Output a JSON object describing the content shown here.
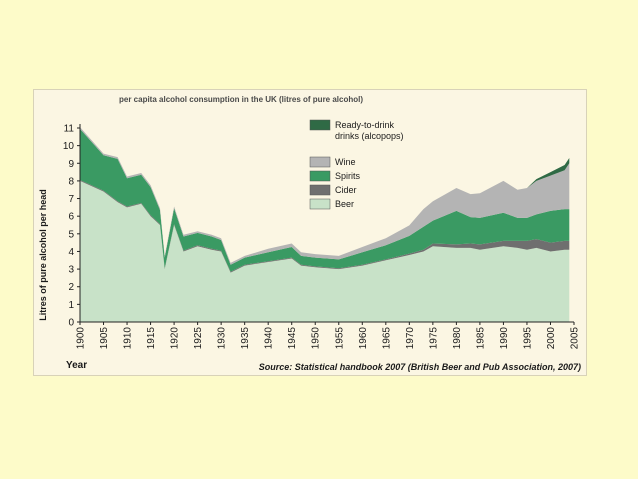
{
  "chart_data": {
    "type": "area",
    "title": "per capita alcohol consumption in the UK (litres of pure alcohol)",
    "ylabel": "Litres of pure alcohol per head",
    "xlabel": "Year",
    "source": "Source: Statistical handbook 2007 (British Beer and Pub Association, 2007)",
    "stacked": true,
    "xlim": [
      1900,
      2005
    ],
    "ylim": [
      0,
      11
    ],
    "x_ticks": [
      1900,
      1905,
      1910,
      1915,
      1920,
      1925,
      1930,
      1935,
      1940,
      1945,
      1950,
      1955,
      1960,
      1965,
      1970,
      1975,
      1980,
      1985,
      1990,
      1995,
      2000,
      2005
    ],
    "y_ticks": [
      0,
      1,
      2,
      3,
      4,
      5,
      6,
      7,
      8,
      9,
      10,
      11
    ],
    "x": [
      1900,
      1905,
      1908,
      1910,
      1913,
      1915,
      1917,
      1918,
      1920,
      1922,
      1925,
      1928,
      1930,
      1932,
      1935,
      1940,
      1945,
      1947,
      1950,
      1955,
      1960,
      1965,
      1970,
      1973,
      1975,
      1980,
      1983,
      1985,
      1990,
      1993,
      1995,
      1997,
      2000,
      2003,
      2004
    ],
    "series": [
      {
        "name": "Beer",
        "color": "#c8e2c8",
        "values": [
          8.0,
          7.4,
          6.8,
          6.5,
          6.7,
          6.0,
          5.5,
          3.0,
          5.5,
          4.0,
          4.3,
          4.1,
          4.0,
          2.8,
          3.2,
          3.4,
          3.6,
          3.2,
          3.1,
          3.0,
          3.2,
          3.5,
          3.8,
          4.0,
          4.3,
          4.2,
          4.2,
          4.1,
          4.3,
          4.2,
          4.1,
          4.2,
          4.0,
          4.1,
          4.1
        ]
      },
      {
        "name": "Cider",
        "color": "#6f6f6f",
        "values": [
          0.05,
          0.05,
          0.05,
          0.05,
          0.05,
          0.05,
          0.05,
          0.05,
          0.05,
          0.05,
          0.05,
          0.05,
          0.05,
          0.05,
          0.05,
          0.05,
          0.05,
          0.05,
          0.05,
          0.05,
          0.05,
          0.05,
          0.08,
          0.1,
          0.15,
          0.2,
          0.25,
          0.3,
          0.3,
          0.4,
          0.5,
          0.5,
          0.5,
          0.5,
          0.5
        ]
      },
      {
        "name": "Spirits",
        "color": "#3a9a63",
        "values": [
          2.9,
          2.0,
          2.4,
          1.6,
          1.6,
          1.6,
          0.8,
          0.6,
          0.9,
          0.8,
          0.7,
          0.7,
          0.6,
          0.4,
          0.4,
          0.5,
          0.6,
          0.5,
          0.5,
          0.5,
          0.7,
          0.8,
          1.0,
          1.3,
          1.3,
          1.9,
          1.5,
          1.5,
          1.6,
          1.3,
          1.3,
          1.4,
          1.8,
          1.8,
          1.8
        ]
      },
      {
        "name": "Wine",
        "color": "#b4b4b4",
        "values": [
          0.1,
          0.1,
          0.1,
          0.1,
          0.1,
          0.1,
          0.1,
          0.1,
          0.1,
          0.1,
          0.1,
          0.1,
          0.1,
          0.1,
          0.1,
          0.2,
          0.2,
          0.2,
          0.2,
          0.2,
          0.3,
          0.4,
          0.6,
          1.0,
          1.1,
          1.3,
          1.3,
          1.4,
          1.8,
          1.6,
          1.7,
          1.9,
          2.0,
          2.2,
          2.6
        ]
      },
      {
        "name": "Ready-to-drink drinks (alcopops)",
        "color": "#2f6a45",
        "values": [
          0,
          0,
          0,
          0,
          0,
          0,
          0,
          0,
          0,
          0,
          0,
          0,
          0,
          0,
          0,
          0,
          0,
          0,
          0,
          0,
          0,
          0,
          0,
          0,
          0,
          0,
          0,
          0,
          0,
          0,
          0,
          0.1,
          0.2,
          0.3,
          0.3
        ]
      }
    ],
    "legend": [
      {
        "label": "Ready-to-drink drinks (alcopops)",
        "label_lines": [
          "Ready-to-drink",
          "drinks (alcopops)"
        ],
        "color": "#2f6a45"
      },
      {
        "label": "Wine",
        "label_lines": [
          "Wine"
        ],
        "color": "#b4b4b4"
      },
      {
        "label": "Spirits",
        "label_lines": [
          "Spirits"
        ],
        "color": "#3a9a63"
      },
      {
        "label": "Cider",
        "label_lines": [
          "Cider"
        ],
        "color": "#6f6f6f"
      },
      {
        "label": "Beer",
        "label_lines": [
          "Beer"
        ],
        "color": "#c8e2c8"
      }
    ],
    "legend_position": "top-right",
    "grid": false
  }
}
